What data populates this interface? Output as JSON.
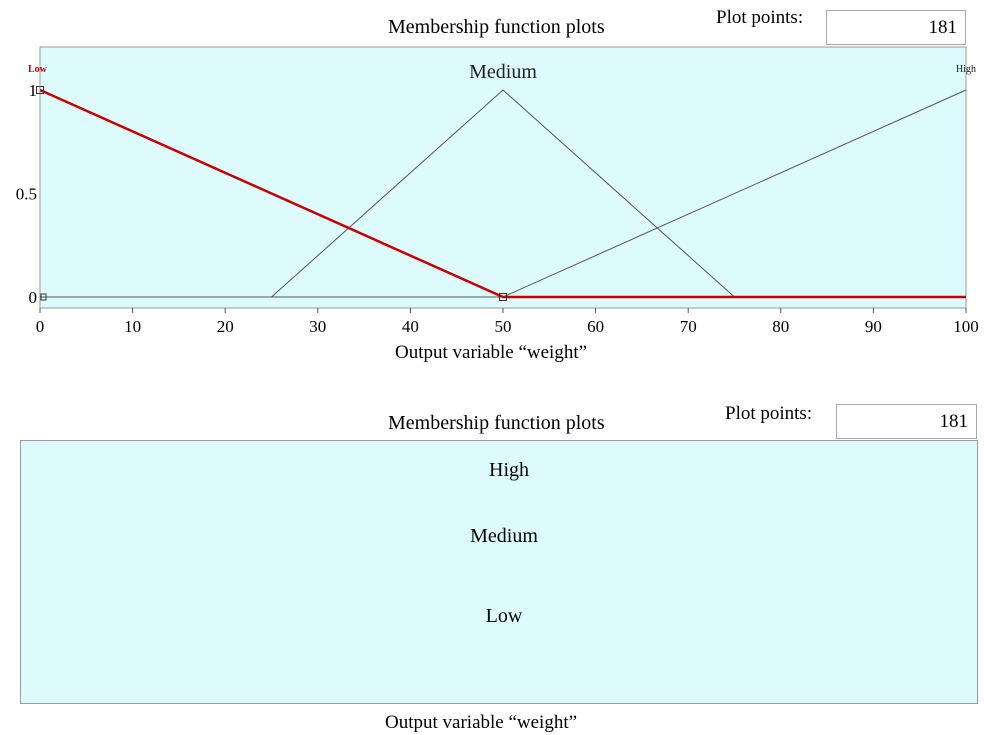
{
  "top_panel": {
    "title": "Membership function plots",
    "plot_points_label": "Plot points:",
    "plot_points_value": "181",
    "xlabel": "Output variable “weight”"
  },
  "bottom_panel": {
    "title": "Membership function plots",
    "plot_points_label": "Plot points:",
    "plot_points_value": "181",
    "xlabel": "Output variable “weight”",
    "mf_names": [
      "High",
      "Medium",
      "Low"
    ]
  },
  "colors": {
    "plot_bg": "#ddfbfd",
    "selected_mf": "#cc0000",
    "mf_line": "#555555"
  },
  "chart_data": {
    "type": "line",
    "xlim": [
      0,
      100
    ],
    "ylim": [
      0,
      1
    ],
    "xticks": [
      0,
      10,
      20,
      30,
      40,
      50,
      60,
      70,
      80,
      90,
      100
    ],
    "yticks": [
      {
        "value": 0,
        "label": "0"
      },
      {
        "value": 0.5,
        "label": "0.5"
      },
      {
        "value": 1,
        "label": "1"
      }
    ],
    "series": [
      {
        "name": "Low",
        "selected": true,
        "x": [
          0,
          50,
          100
        ],
        "y": [
          1,
          0,
          0
        ]
      },
      {
        "name": "Medium",
        "selected": false,
        "x": [
          0,
          25,
          50,
          75,
          100
        ],
        "y": [
          0,
          0,
          1,
          0,
          0
        ]
      },
      {
        "name": "High",
        "selected": false,
        "x": [
          0,
          50,
          100
        ],
        "y": [
          0,
          0,
          1
        ]
      }
    ]
  }
}
